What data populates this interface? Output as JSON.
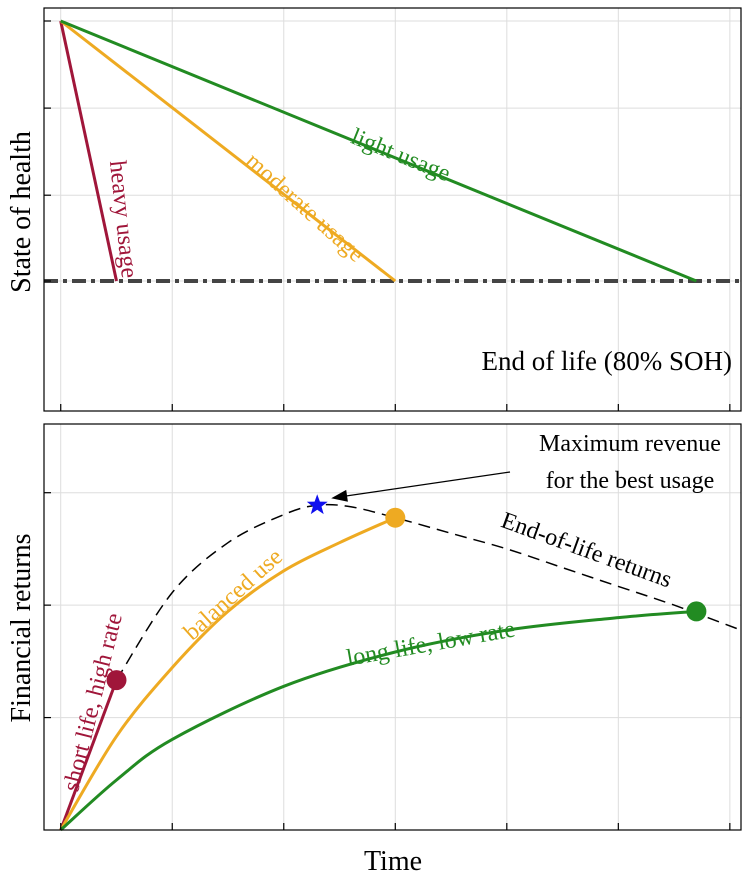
{
  "chart_data": [
    {
      "type": "line",
      "title": "",
      "xlabel": "",
      "ylabel": "State of health",
      "x_ticks": [
        0,
        1,
        2,
        3,
        4,
        5,
        6
      ],
      "xlim": [
        -0.15,
        6.1
      ],
      "ylim": [
        0.7,
        1.01
      ],
      "series": [
        {
          "name": "heavy usage",
          "color": "#a0163a",
          "x": [
            0,
            0.5
          ],
          "y": [
            1.0,
            0.8
          ]
        },
        {
          "name": "moderate usage",
          "color": "#eeaa22",
          "x": [
            0,
            3.0
          ],
          "y": [
            1.0,
            0.8
          ]
        },
        {
          "name": "light usage",
          "color": "#228b22",
          "x": [
            0,
            5.7
          ],
          "y": [
            1.0,
            0.8
          ]
        }
      ],
      "reference_line": {
        "label": "End of life (80% SOH)",
        "y": 0.8,
        "style": "dash-dot",
        "color": "#444444"
      }
    },
    {
      "type": "line",
      "title": "",
      "xlabel": "Time",
      "ylabel": "Financial returns",
      "x_ticks": [
        0,
        1,
        2,
        3,
        4,
        5,
        6
      ],
      "xlim": [
        -0.15,
        6.1
      ],
      "ylim": [
        0,
        1.3
      ],
      "series": [
        {
          "name": "short life, high rate",
          "color": "#a0163a",
          "x": [
            0,
            0.5
          ],
          "y": [
            0,
            0.48
          ],
          "end_marker": true
        },
        {
          "name": "balanced use",
          "color": "#eeaa22",
          "x": [
            0,
            0.5,
            1.0,
            1.5,
            2.0,
            2.5,
            3.0
          ],
          "y": [
            0,
            0.3,
            0.52,
            0.7,
            0.83,
            0.92,
            1.0
          ],
          "end_marker": true
        },
        {
          "name": "long life, low rate",
          "color": "#228b22",
          "x": [
            0,
            0.5,
            1.0,
            2.0,
            3.0,
            4.0,
            5.0,
            5.7
          ],
          "y": [
            0,
            0.16,
            0.29,
            0.46,
            0.57,
            0.64,
            0.68,
            0.7
          ],
          "end_marker": true
        },
        {
          "name": "End-of-life returns",
          "color": "#000000",
          "style": "dashed",
          "x": [
            0.5,
            1.0,
            1.5,
            2.0,
            2.3,
            2.6,
            3.0,
            3.5,
            4.0,
            4.5,
            5.0,
            5.5,
            6.1
          ],
          "y": [
            0.48,
            0.76,
            0.92,
            1.01,
            1.04,
            1.035,
            1.0,
            0.95,
            0.9,
            0.84,
            0.78,
            0.72,
            0.64
          ]
        }
      ],
      "annotation": {
        "text_line1": "Maximum revenue",
        "text_line2": "for the best usage",
        "point": {
          "x": 2.3,
          "y": 1.04
        },
        "marker": "star",
        "color": "#1010ee"
      }
    }
  ]
}
